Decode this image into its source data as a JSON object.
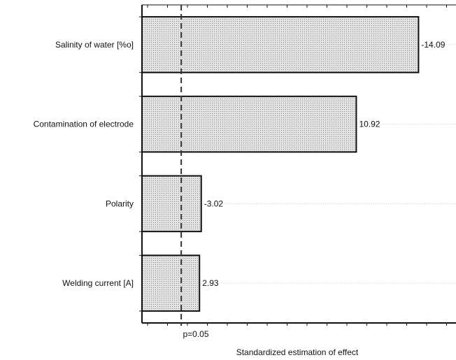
{
  "chart_data": {
    "type": "bar",
    "orientation": "horizontal",
    "categories": [
      "Salinity of water [%o]",
      "Contamination of electrode",
      "Polarity",
      "Welding current [A]"
    ],
    "values": [
      14.09,
      10.92,
      3.02,
      2.93
    ],
    "value_labels": [
      "-14.09",
      "10.92",
      "-3.02",
      "2.93"
    ],
    "xlabel": "Standardized estimation of effect",
    "reference_line": {
      "value": 2.0,
      "label": "p=0.05"
    },
    "xlim": [
      0,
      16
    ],
    "grid": false,
    "bar_fill": "#d6d6d6",
    "bar_stroke": "#111111"
  }
}
